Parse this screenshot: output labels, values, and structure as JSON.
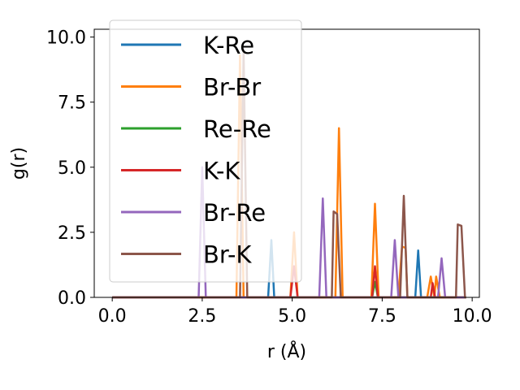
{
  "chart_data": {
    "type": "line",
    "title": "",
    "xlabel": "r (Å)",
    "ylabel": "g(r)",
    "xlim": [
      -0.5,
      10.2
    ],
    "ylim": [
      0,
      10.3
    ],
    "xticks": [
      0.0,
      2.5,
      5.0,
      7.5,
      10.0
    ],
    "xtick_labels": [
      "0.0",
      "2.5",
      "5.0",
      "7.5",
      "10.0"
    ],
    "yticks": [
      0.0,
      2.5,
      5.0,
      7.5,
      10.0
    ],
    "ytick_labels": [
      "0.0",
      "2.5",
      "5.0",
      "7.5",
      "10.0"
    ],
    "grid": false,
    "legend_position": "upper-left",
    "series": [
      {
        "name": "K-Re",
        "color": "#1f77b4",
        "x": [
          0.0,
          4.33,
          4.42,
          4.5,
          8.42,
          8.5,
          8.58,
          9.83
        ],
        "y": [
          0,
          0,
          2.2,
          0,
          0,
          1.8,
          0,
          0
        ]
      },
      {
        "name": "Br-Br",
        "color": "#ff7f0e",
        "x": [
          0.0,
          3.45,
          3.55,
          3.65,
          4.95,
          5.05,
          5.15,
          6.2,
          6.3,
          6.4,
          7.2,
          7.3,
          7.4,
          7.95,
          8.05,
          8.15,
          8.2,
          8.75,
          8.85,
          8.95,
          9.0,
          9.1,
          9.83
        ],
        "y": [
          0,
          0,
          9.3,
          0,
          0,
          2.5,
          0,
          0,
          6.5,
          0,
          0,
          3.6,
          0,
          0,
          1.95,
          1.9,
          0,
          0,
          0.8,
          0,
          0.8,
          0,
          0
        ]
      },
      {
        "name": "Re-Re",
        "color": "#2ca02c",
        "x": [
          0.0,
          7.22,
          7.3,
          7.38,
          9.83
        ],
        "y": [
          0,
          0,
          0.6,
          0,
          0
        ]
      },
      {
        "name": "K-K",
        "color": "#d62728",
        "x": [
          0.0,
          4.95,
          5.05,
          5.15,
          7.22,
          7.3,
          7.38,
          8.85,
          8.9,
          8.97,
          9.83
        ],
        "y": [
          0,
          0,
          1.2,
          0,
          0,
          1.2,
          0,
          0,
          0.55,
          0,
          0
        ]
      },
      {
        "name": "Br-Re",
        "color": "#9467bd",
        "x": [
          0.0,
          2.4,
          2.5,
          2.6,
          5.75,
          5.85,
          5.95,
          7.75,
          7.85,
          7.95,
          9.05,
          9.15,
          9.25,
          9.83
        ],
        "y": [
          0,
          0,
          5.0,
          0,
          0,
          3.8,
          0,
          0,
          2.2,
          0,
          0,
          1.5,
          0,
          0
        ]
      },
      {
        "name": "Br-K",
        "color": "#8c564b",
        "x": [
          0.0,
          3.55,
          3.65,
          3.75,
          6.1,
          6.15,
          6.25,
          6.35,
          8.0,
          8.1,
          8.2,
          9.55,
          9.6,
          9.7,
          9.8,
          9.83
        ],
        "y": [
          0,
          0,
          9.5,
          0,
          0,
          3.3,
          3.2,
          0,
          0,
          3.9,
          0,
          0,
          2.8,
          2.75,
          0,
          0
        ]
      }
    ]
  }
}
